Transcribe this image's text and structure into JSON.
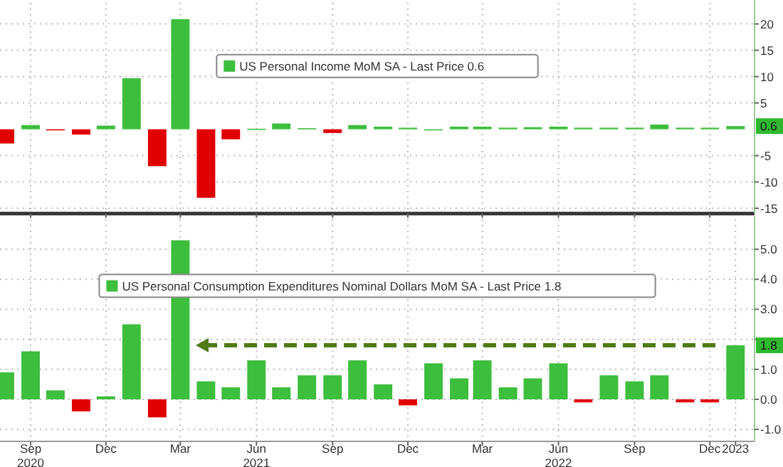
{
  "chart_data": [
    {
      "type": "bar",
      "x": [
        "2020-08",
        "2020-09",
        "2020-10",
        "2020-11",
        "2020-12",
        "2021-01",
        "2021-02",
        "2021-03",
        "2021-04",
        "2021-05",
        "2021-06",
        "2021-07",
        "2021-08",
        "2021-09",
        "2021-10",
        "2021-11",
        "2021-12",
        "2022-01",
        "2022-02",
        "2022-03",
        "2022-04",
        "2022-05",
        "2022-06",
        "2022-07",
        "2022-08",
        "2022-09",
        "2022-10",
        "2022-11",
        "2022-12",
        "2023-01"
      ],
      "series": [
        {
          "name": "US Personal Income MoM SA - Last Price 0.6",
          "values": [
            -2.7,
            0.8,
            -0.2,
            -1.0,
            0.7,
            9.7,
            -7.0,
            20.9,
            -13.0,
            -1.9,
            0.1,
            1.1,
            0.2,
            -0.7,
            0.8,
            0.5,
            0.3,
            0.0,
            0.5,
            0.5,
            0.3,
            0.4,
            0.5,
            0.3,
            0.3,
            0.3,
            0.9,
            0.3,
            0.3,
            0.6
          ]
        }
      ],
      "colors": [
        "#e00000",
        "#3dbe3d",
        "#e00000",
        "#e00000",
        "#3dbe3d",
        "#3dbe3d",
        "#e00000",
        "#3dbe3d",
        "#e00000",
        "#e00000",
        "#3dbe3d",
        "#3dbe3d",
        "#3dbe3d",
        "#e00000",
        "#3dbe3d",
        "#3dbe3d",
        "#3dbe3d",
        "#3dbe3d",
        "#3dbe3d",
        "#3dbe3d",
        "#3dbe3d",
        "#3dbe3d",
        "#3dbe3d",
        "#3dbe3d",
        "#3dbe3d",
        "#3dbe3d",
        "#3dbe3d",
        "#3dbe3d",
        "#3dbe3d",
        "#3dbe3d"
      ],
      "xlim": [
        "2020-07-26",
        "2023-01-24"
      ],
      "xticks": [
        {
          "value": "2020-09",
          "label": null
        },
        {
          "value": "2020-12",
          "label": null
        },
        {
          "value": "2021-03",
          "label": null
        },
        {
          "value": "2021-06",
          "label": null
        },
        {
          "value": "2021-09",
          "label": null
        },
        {
          "value": "2021-12",
          "label": null
        },
        {
          "value": "2022-03",
          "label": null
        },
        {
          "value": "2022-06",
          "label": null
        },
        {
          "value": "2022-09",
          "label": null
        },
        {
          "value": "2022-12",
          "label": null
        }
      ],
      "ylim": [
        -16,
        24
      ],
      "yticks": [
        -15,
        -10,
        -5,
        5,
        10,
        15,
        20
      ],
      "tick_labels": "y",
      "grid": true,
      "legend": "top",
      "annotations": [
        {
          "text": "0.6",
          "y": 0.6
        }
      ]
    },
    {
      "type": "bar",
      "x": [
        "2020-08",
        "2020-09",
        "2020-10",
        "2020-11",
        "2020-12",
        "2021-01",
        "2021-02",
        "2021-03",
        "2021-04",
        "2021-05",
        "2021-06",
        "2021-07",
        "2021-08",
        "2021-09",
        "2021-10",
        "2021-11",
        "2021-12",
        "2022-01",
        "2022-02",
        "2022-03",
        "2022-04",
        "2022-05",
        "2022-06",
        "2022-07",
        "2022-08",
        "2022-09",
        "2022-10",
        "2022-11",
        "2022-12",
        "2023-01"
      ],
      "series": [
        {
          "name": "US Personal Consumption Expenditures Nominal Dollars MoM SA - Last Price 1.8",
          "values": [
            0.9,
            1.6,
            0.3,
            -0.4,
            0.1,
            2.5,
            -0.6,
            5.3,
            0.6,
            0.4,
            1.3,
            0.4,
            0.8,
            0.8,
            1.3,
            0.5,
            -0.2,
            1.2,
            0.7,
            1.3,
            0.4,
            0.7,
            1.2,
            -0.1,
            0.8,
            0.6,
            0.8,
            -0.1,
            -0.1,
            1.8
          ]
        }
      ],
      "colors": [
        "#3dbe3d",
        "#3dbe3d",
        "#3dbe3d",
        "#e00000",
        "#3dbe3d",
        "#3dbe3d",
        "#e00000",
        "#3dbe3d",
        "#3dbe3d",
        "#3dbe3d",
        "#3dbe3d",
        "#3dbe3d",
        "#3dbe3d",
        "#3dbe3d",
        "#3dbe3d",
        "#3dbe3d",
        "#e00000",
        "#3dbe3d",
        "#3dbe3d",
        "#3dbe3d",
        "#3dbe3d",
        "#3dbe3d",
        "#3dbe3d",
        "#e00000",
        "#3dbe3d",
        "#3dbe3d",
        "#3dbe3d",
        "#e00000",
        "#e00000",
        "#3dbe3d"
      ],
      "xlim": [
        "2020-07-26",
        "2023-01-24"
      ],
      "xticks": [
        {
          "value": "2020-09",
          "label": "Sep\n2020"
        },
        {
          "value": "2020-12",
          "label": "Dec"
        },
        {
          "value": "2021-03",
          "label": "Mar"
        },
        {
          "value": "2021-06",
          "label": "Jun\n2021"
        },
        {
          "value": "2021-09",
          "label": "Sep"
        },
        {
          "value": "2021-12",
          "label": "Dec"
        },
        {
          "value": "2022-03",
          "label": "Mar"
        },
        {
          "value": "2022-06",
          "label": "Jun\n2022"
        },
        {
          "value": "2022-09",
          "label": "Sep"
        },
        {
          "value": "2022-12",
          "label": "Dec"
        },
        {
          "value": "2023-01",
          "label": "2023"
        }
      ],
      "ylim": [
        -1.4,
        6.0
      ],
      "yticks": [
        {
          "value": -1,
          "label": "-1.0"
        },
        {
          "value": 0,
          "label": "0.0"
        },
        {
          "value": 1,
          "label": "1.0"
        },
        {
          "value": 2,
          "label": null
        },
        {
          "value": 3,
          "label": "3.0"
        },
        {
          "value": 4,
          "label": "4.0"
        },
        {
          "value": 5,
          "label": "5.0"
        }
      ],
      "grid": true,
      "legend": "top",
      "ref_lines": [
        {
          "axis": "y",
          "value": 1.8,
          "color": "#4f7a16",
          "line_style": "dashed"
        }
      ],
      "annotations": [
        {
          "text": "1.8",
          "y": 1.8
        }
      ]
    }
  ]
}
